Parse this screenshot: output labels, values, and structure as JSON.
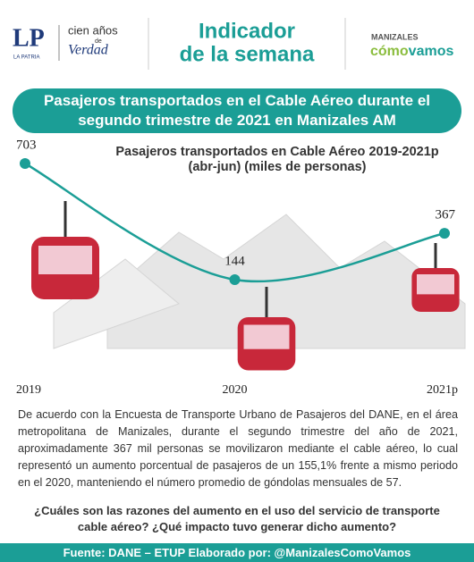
{
  "header": {
    "logo_mark": "LP",
    "logo_sub": "LA PATRIA",
    "tagline_top": "cien años",
    "tagline_mid": "de",
    "tagline_bottom": "Verdad",
    "title_lines": [
      "Indicador",
      "de la semana"
    ],
    "brand_city": "MANIZALES",
    "brand_a": "cómo",
    "brand_b": "vamos"
  },
  "banner": "Pasajeros transportados en el Cable Aéreo durante el segundo trimestre de 2021 en Manizales AM",
  "chart_data": {
    "type": "line",
    "title": "Pasajeros transportados en Cable Aéreo 2019-2021p",
    "subtitle": "(abr-jun) (miles de personas)",
    "categories": [
      "2019",
      "2020",
      "2021p"
    ],
    "values": [
      703,
      144,
      367
    ],
    "color": "#1b9e96"
  },
  "body": "De acuerdo con la Encuesta de Transporte Urbano de Pasajeros del DANE, en el área metropolitana de Manizales, durante el segundo trimestre del año de 2021, aproximadamente 367 mil personas se movilizaron mediante el cable aéreo, lo cual representó un aumento porcentual de pasajeros de un 155,1% frente a mismo periodo en el 2020, manteniendo el número promedio de góndolas mensuales de 57.",
  "question": "¿Cuáles son las razones del aumento en el uso del servicio de transporte cable aéreo? ¿Qué impacto tuvo generar dicho aumento?",
  "footer": "Fuente: DANE – ETUP Elaborado por: @ManizalesComoVamos"
}
